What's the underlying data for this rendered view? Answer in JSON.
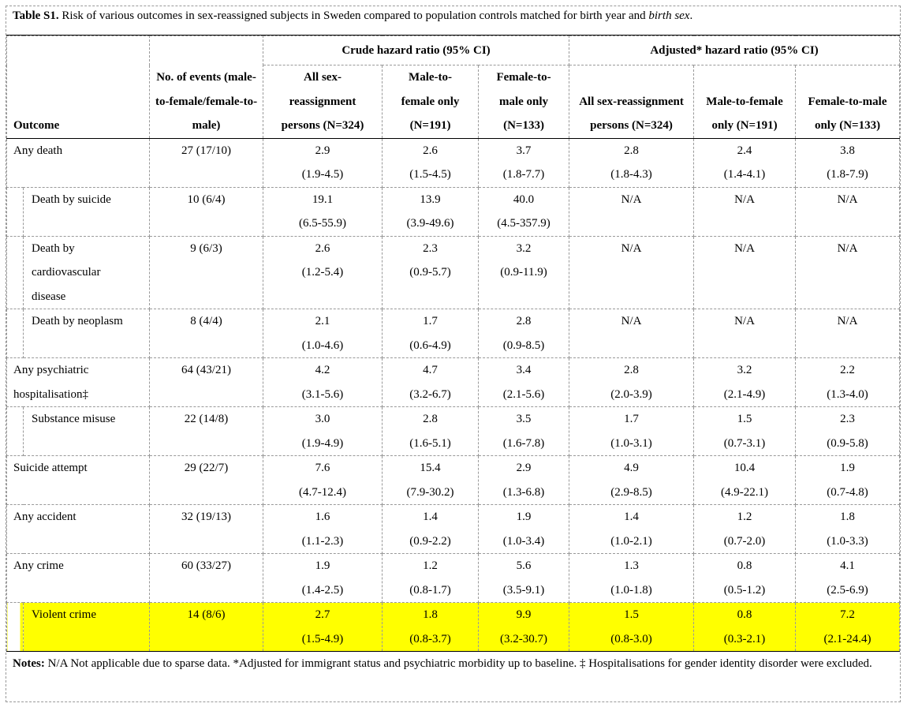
{
  "title": {
    "label": "Table S1.",
    "text": " Risk of various outcomes in sex-reassigned subjects in Sweden compared to population controls matched for birth year and ",
    "italic": "birth sex",
    "end": "."
  },
  "header": {
    "outcome": "Outcome",
    "events": "No. of events (male-to-female/female-to-male)",
    "crude": "Crude hazard ratio (95% CI)",
    "adjusted": "Adjusted* hazard ratio (95% CI)",
    "subcols": [
      "All sex-reassignment persons (N=324)",
      "Male-to-female only (N=191)",
      "Female-to-male only (N=133)",
      "All sex-reassignment persons (N=324)",
      "Male-to-female only (N=191)",
      "Female-to-male only (N=133)"
    ]
  },
  "rows": [
    {
      "outcome": "Any death",
      "sub": false,
      "events": "27 (17/10)",
      "values": [
        [
          "2.9",
          "(1.9-4.5)"
        ],
        [
          "2.6",
          "(1.5-4.5)"
        ],
        [
          "3.7",
          "(1.8-7.7)"
        ],
        [
          "2.8",
          "(1.8-4.3)"
        ],
        [
          "2.4",
          "(1.4-4.1)"
        ],
        [
          "3.8",
          "(1.8-7.9)"
        ]
      ]
    },
    {
      "outcome": "Death by suicide",
      "sub": true,
      "events": "10 (6/4)",
      "values": [
        [
          "19.1",
          "(6.5-55.9)"
        ],
        [
          "13.9",
          "(3.9-49.6)"
        ],
        [
          "40.0",
          "(4.5-357.9)"
        ],
        [
          "N/A",
          ""
        ],
        [
          "N/A",
          ""
        ],
        [
          "N/A",
          ""
        ]
      ]
    },
    {
      "outcome": "Death by cardiovascular disease",
      "sub": true,
      "events": "9 (6/3)",
      "values": [
        [
          "2.6",
          "(1.2-5.4)"
        ],
        [
          "2.3",
          "(0.9-5.7)"
        ],
        [
          "3.2",
          "(0.9-11.9)"
        ],
        [
          "N/A",
          ""
        ],
        [
          "N/A",
          ""
        ],
        [
          "N/A",
          ""
        ]
      ]
    },
    {
      "outcome": "Death by neoplasm",
      "sub": true,
      "events": "8 (4/4)",
      "values": [
        [
          "2.1",
          "(1.0-4.6)"
        ],
        [
          "1.7",
          "(0.6-4.9)"
        ],
        [
          "2.8",
          "(0.9-8.5)"
        ],
        [
          "N/A",
          ""
        ],
        [
          "N/A",
          ""
        ],
        [
          "N/A",
          ""
        ]
      ]
    },
    {
      "outcome": "Any psychiatric hospitalisation‡",
      "sub": false,
      "events": "64 (43/21)",
      "values": [
        [
          "4.2",
          "(3.1-5.6)"
        ],
        [
          "4.7",
          "(3.2-6.7)"
        ],
        [
          "3.4",
          "(2.1-5.6)"
        ],
        [
          "2.8",
          "(2.0-3.9)"
        ],
        [
          "3.2",
          "(2.1-4.9)"
        ],
        [
          "2.2",
          "(1.3-4.0)"
        ]
      ]
    },
    {
      "outcome": "Substance misuse",
      "sub": true,
      "events": "22 (14/8)",
      "values": [
        [
          "3.0",
          "(1.9-4.9)"
        ],
        [
          "2.8",
          "(1.6-5.1)"
        ],
        [
          "3.5",
          "(1.6-7.8)"
        ],
        [
          "1.7",
          "(1.0-3.1)"
        ],
        [
          "1.5",
          "(0.7-3.1)"
        ],
        [
          "2.3",
          "(0.9-5.8)"
        ]
      ]
    },
    {
      "outcome": "Suicide attempt",
      "sub": false,
      "events": "29 (22/7)",
      "values": [
        [
          "7.6",
          "(4.7-12.4)"
        ],
        [
          "15.4",
          "(7.9-30.2)"
        ],
        [
          "2.9",
          "(1.3-6.8)"
        ],
        [
          "4.9",
          "(2.9-8.5)"
        ],
        [
          "10.4",
          "(4.9-22.1)"
        ],
        [
          "1.9",
          "(0.7-4.8)"
        ]
      ]
    },
    {
      "outcome": "Any accident",
      "sub": false,
      "events": "32 (19/13)",
      "values": [
        [
          "1.6",
          "(1.1-2.3)"
        ],
        [
          "1.4",
          "(0.9-2.2)"
        ],
        [
          "1.9",
          "(1.0-3.4)"
        ],
        [
          "1.4",
          "(1.0-2.1)"
        ],
        [
          "1.2",
          "(0.7-2.0)"
        ],
        [
          "1.8",
          "(1.0-3.3)"
        ]
      ]
    },
    {
      "outcome": "Any crime",
      "sub": false,
      "events": "60 (33/27)",
      "values": [
        [
          "1.9",
          "(1.4-2.5)"
        ],
        [
          "1.2",
          "(0.8-1.7)"
        ],
        [
          "5.6",
          "(3.5-9.1)"
        ],
        [
          "1.3",
          "(1.0-1.8)"
        ],
        [
          "0.8",
          "(0.5-1.2)"
        ],
        [
          "4.1",
          "(2.5-6.9)"
        ]
      ]
    },
    {
      "outcome": "Violent crime",
      "sub": true,
      "highlight": true,
      "events": "14 (8/6)",
      "values": [
        [
          "2.7",
          "(1.5-4.9)"
        ],
        [
          "1.8",
          "(0.8-3.7)"
        ],
        [
          "9.9",
          "(3.2-30.7)"
        ],
        [
          "1.5",
          "(0.8-3.0)"
        ],
        [
          "0.8",
          "(0.3-2.1)"
        ],
        [
          "7.2",
          "(2.1-24.4)"
        ]
      ]
    }
  ],
  "notes": {
    "label": "Notes:",
    "text": " N/A Not applicable due to sparse data. *Adjusted for immigrant status and psychiatric morbidity up to baseline. ‡ Hospitalisations for gender identity disorder were excluded."
  },
  "colors": {
    "highlight": "#ffff00"
  }
}
